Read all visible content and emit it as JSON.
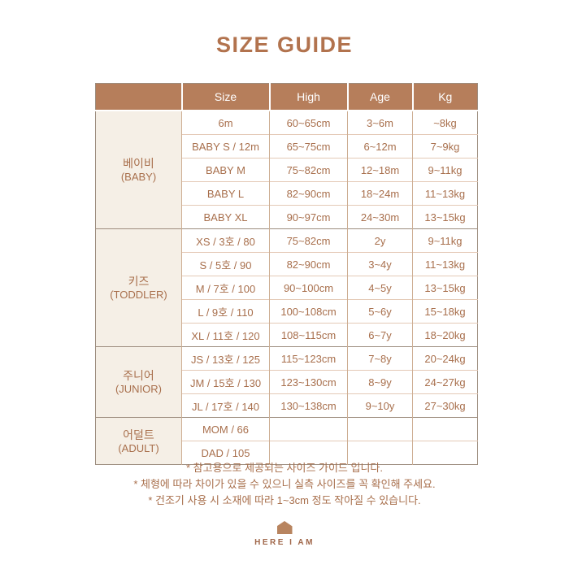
{
  "title": "SIZE GUIDE",
  "colors": {
    "header_bg": "#b67e5b",
    "group_bg": "#f5efe6",
    "text_brown": "#a86f4c",
    "title_brown": "#b2734e",
    "border_dark": "#9d8d7f",
    "border_light": "#e4c9b6",
    "border_vertical": "#cdae93"
  },
  "table": {
    "headers": [
      "Size",
      "High",
      "Age",
      "Kg"
    ],
    "groups": [
      {
        "label_ko": "베이비",
        "label_en": "(BABY)",
        "rows": [
          {
            "size": "6m",
            "high": "60~65cm",
            "age": "3~6m",
            "kg": "~8kg"
          },
          {
            "size": "BABY S / 12m",
            "high": "65~75cm",
            "age": "6~12m",
            "kg": "7~9kg"
          },
          {
            "size": "BABY M",
            "high": "75~82cm",
            "age": "12~18m",
            "kg": "9~11kg"
          },
          {
            "size": "BABY L",
            "high": "82~90cm",
            "age": "18~24m",
            "kg": "11~13kg"
          },
          {
            "size": "BABY XL",
            "high": "90~97cm",
            "age": "24~30m",
            "kg": "13~15kg"
          }
        ]
      },
      {
        "label_ko": "키즈",
        "label_en": "(TODDLER)",
        "rows": [
          {
            "size": "XS / 3호 / 80",
            "high": "75~82cm",
            "age": "2y",
            "kg": "9~11kg"
          },
          {
            "size": "S / 5호 / 90",
            "high": "82~90cm",
            "age": "3~4y",
            "kg": "11~13kg"
          },
          {
            "size": "M / 7호 / 100",
            "high": "90~100cm",
            "age": "4~5y",
            "kg": "13~15kg"
          },
          {
            "size": "L / 9호 / 110",
            "high": "100~108cm",
            "age": "5~6y",
            "kg": "15~18kg"
          },
          {
            "size": "XL / 11호 / 120",
            "high": "108~115cm",
            "age": "6~7y",
            "kg": "18~20kg"
          }
        ]
      },
      {
        "label_ko": "주니어",
        "label_en": "(JUNIOR)",
        "rows": [
          {
            "size": "JS / 13호 / 125",
            "high": "115~123cm",
            "age": "7~8y",
            "kg": "20~24kg"
          },
          {
            "size": "JM / 15호 / 130",
            "high": "123~130cm",
            "age": "8~9y",
            "kg": "24~27kg"
          },
          {
            "size": "JL / 17호 / 140",
            "high": "130~138cm",
            "age": "9~10y",
            "kg": "27~30kg"
          }
        ]
      },
      {
        "label_ko": "어덜트",
        "label_en": "(ADULT)",
        "rows": [
          {
            "size": "MOM / 66",
            "high": "",
            "age": "",
            "kg": ""
          },
          {
            "size": "DAD / 105",
            "high": "",
            "age": "",
            "kg": ""
          }
        ]
      }
    ]
  },
  "notes": [
    "* 참고용으로 제공되는 사이즈 가이드 입니다.",
    "* 체형에 따라 차이가 있을 수 있으니 실측 사이즈를 꼭 확인해 주세요.",
    "* 건조기 사용 시 소재에 따라 1~3cm 정도 작아질 수 있습니다."
  ],
  "logo": {
    "text": "HERE I AM"
  }
}
